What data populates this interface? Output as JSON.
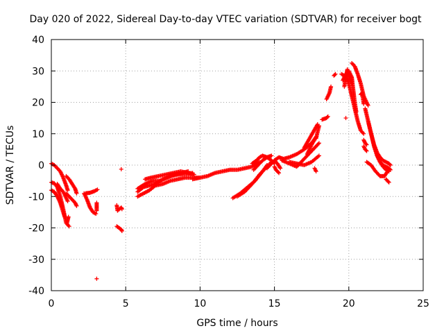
{
  "chart_data": {
    "type": "scatter",
    "title": "Day 020 of 2022, Sidereal Day-to-day VTEC variation (SDTVAR) for receiver bogt",
    "xlabel": "GPS time / hours",
    "ylabel": "SDTVAR / TECUs",
    "xlim": [
      0,
      25
    ],
    "ylim": [
      -40,
      40
    ],
    "xticks": [
      0,
      5,
      10,
      15,
      20,
      25
    ],
    "yticks": [
      -40,
      -30,
      -20,
      -10,
      0,
      10,
      20,
      30,
      40
    ],
    "grid": true,
    "marker": "+",
    "color": "#ff0000",
    "series": [
      {
        "name": "seg1",
        "x": [
          0.0,
          0.2,
          0.4,
          0.6,
          0.8,
          1.0,
          1.1
        ],
        "y": [
          0.5,
          0.0,
          -1.0,
          -2.0,
          -4.0,
          -6.5,
          -8.0
        ]
      },
      {
        "name": "seg2",
        "x": [
          0.0,
          0.2,
          0.4,
          0.6,
          0.8,
          1.0,
          1.2
        ],
        "y": [
          -5.5,
          -5.8,
          -7.0,
          -10.0,
          -14.0,
          -18.5,
          -19.5
        ]
      },
      {
        "name": "seg3",
        "x": [
          0.0,
          0.2,
          0.4,
          0.6,
          0.8,
          0.9
        ],
        "y": [
          -8.0,
          -8.5,
          -10.0,
          -12.0,
          -15.0,
          -16.5
        ]
      },
      {
        "name": "seg4",
        "x": [
          0.4,
          0.6,
          0.8,
          1.0,
          1.1
        ],
        "y": [
          -6.0,
          -7.5,
          -8.5,
          -10.5,
          -11.5
        ]
      },
      {
        "name": "seg5",
        "x": [
          1.0,
          1.2,
          1.4,
          1.6,
          1.7
        ],
        "y": [
          -3.5,
          -4.5,
          -6.0,
          -7.5,
          -9.0
        ]
      },
      {
        "name": "seg6",
        "x": [
          1.0,
          1.2,
          1.4,
          1.6,
          1.7
        ],
        "y": [
          -9.0,
          -10.0,
          -11.0,
          -12.0,
          -13.0
        ]
      },
      {
        "name": "seg7",
        "x": [
          1.05,
          1.1,
          1.15
        ],
        "y": [
          -18.5,
          -17.5,
          -16.5
        ]
      },
      {
        "name": "seg8",
        "x": [
          2.2,
          2.4,
          2.6,
          2.8,
          3.0
        ],
        "y": [
          -9.0,
          -11.0,
          -13.5,
          -15.0,
          -15.5
        ]
      },
      {
        "name": "seg9",
        "x": [
          2.3,
          2.6,
          2.9,
          3.1
        ],
        "y": [
          -9.0,
          -8.8,
          -8.3,
          -7.8
        ]
      },
      {
        "name": "seg10",
        "x": [
          3.05,
          3.05,
          3.05
        ],
        "y": [
          -12.0,
          -13.0,
          -14.5
        ]
      },
      {
        "name": "seg11",
        "x": [
          3.05
        ],
        "y": [
          -36.2
        ]
      },
      {
        "name": "seg12",
        "x": [
          4.4,
          4.45,
          4.7,
          4.75
        ],
        "y": [
          -12.8,
          -14.5,
          -13.5,
          -14.0
        ]
      },
      {
        "name": "seg13",
        "x": [
          4.4,
          4.7,
          4.75
        ],
        "y": [
          -19.5,
          -20.5,
          -21.0
        ]
      },
      {
        "name": "seg14",
        "x": [
          4.7
        ],
        "y": [
          -1.3
        ]
      },
      {
        "name": "seg15",
        "x": [
          5.8,
          6.2,
          6.6,
          7.0,
          7.5,
          8.0,
          8.5,
          9.0,
          9.5,
          10.0
        ],
        "y": [
          -10.0,
          -9.0,
          -8.0,
          -6.5,
          -6.0,
          -5.0,
          -4.5,
          -4.0,
          -4.0,
          -4.0
        ]
      },
      {
        "name": "seg16",
        "x": [
          5.8,
          6.3,
          6.8,
          7.3,
          7.8,
          8.3,
          8.8,
          9.2
        ],
        "y": [
          -7.5,
          -6.0,
          -5.0,
          -5.0,
          -4.0,
          -3.0,
          -2.5,
          -2.0
        ]
      },
      {
        "name": "seg17",
        "x": [
          5.8,
          6.2,
          6.6,
          7.0,
          7.5,
          8.0,
          8.5,
          9.0,
          9.5
        ],
        "y": [
          -8.5,
          -7.0,
          -6.5,
          -6.0,
          -4.5,
          -3.5,
          -3.0,
          -2.8,
          -2.5
        ]
      },
      {
        "name": "seg18",
        "x": [
          6.3,
          6.7,
          7.2,
          7.7,
          8.2,
          8.7,
          9.2,
          9.6
        ],
        "y": [
          -4.5,
          -4.0,
          -3.5,
          -3.0,
          -2.5,
          -2.0,
          -2.5,
          -3.0
        ]
      },
      {
        "name": "seg19",
        "x": [
          9.5,
          10.0,
          10.5,
          11.0,
          11.5,
          12.0,
          12.5,
          13.0,
          13.5,
          14.0
        ],
        "y": [
          -4.5,
          -4.0,
          -3.5,
          -2.5,
          -2.0,
          -1.5,
          -1.5,
          -1.0,
          -0.5,
          1.0
        ]
      },
      {
        "name": "seg20",
        "x": [
          12.2,
          12.7,
          13.2,
          13.7,
          14.2,
          14.5
        ],
        "y": [
          -10.5,
          -9.0,
          -7.0,
          -5.0,
          -2.0,
          0.0
        ]
      },
      {
        "name": "seg21",
        "x": [
          12.5,
          13.0,
          13.5,
          14.0,
          14.5,
          14.8
        ],
        "y": [
          -10.0,
          -8.5,
          -6.0,
          -3.0,
          -0.5,
          1.0
        ]
      },
      {
        "name": "seg22",
        "x": [
          13.5,
          13.8,
          14.0,
          14.2,
          14.5,
          14.8,
          15.0
        ],
        "y": [
          0.5,
          1.5,
          2.5,
          3.0,
          2.5,
          1.5,
          0.5
        ]
      },
      {
        "name": "seg23",
        "x": [
          13.6,
          13.9,
          14.2,
          14.5,
          14.8
        ],
        "y": [
          -1.5,
          0.0,
          1.5,
          2.5,
          3.0
        ]
      },
      {
        "name": "seg24",
        "x": [
          14.5,
          14.8,
          15.0,
          15.2,
          15.4
        ],
        "y": [
          -1.0,
          0.5,
          1.5,
          0.5,
          -1.0
        ]
      },
      {
        "name": "seg25",
        "x": [
          15.0,
          15.1,
          15.2,
          15.3
        ],
        "y": [
          -0.5,
          -1.5,
          -2.0,
          -2.5
        ]
      },
      {
        "name": "seg26",
        "x": [
          15.0,
          15.3,
          15.6,
          16.0,
          16.5,
          17.0,
          17.5,
          17.8
        ],
        "y": [
          1.5,
          2.5,
          2.0,
          2.5,
          3.5,
          5.0,
          7.0,
          9.0
        ]
      },
      {
        "name": "seg27",
        "x": [
          15.5,
          16.0,
          16.5,
          17.0,
          17.5,
          18.0
        ],
        "y": [
          1.5,
          0.5,
          -0.5,
          2.0,
          4.5,
          7.0
        ]
      },
      {
        "name": "seg28",
        "x": [
          16.0,
          16.5,
          17.0,
          17.5,
          18.0
        ],
        "y": [
          1.0,
          0.5,
          0.0,
          1.0,
          3.0
        ]
      },
      {
        "name": "seg29",
        "x": [
          17.0,
          17.3,
          17.6,
          17.9
        ],
        "y": [
          5.5,
          8.0,
          10.5,
          13.0
        ]
      },
      {
        "name": "seg30",
        "x": [
          17.2,
          17.5,
          17.8
        ],
        "y": [
          3.5,
          6.5,
          9.0
        ]
      },
      {
        "name": "seg31",
        "x": [
          17.8,
          17.9,
          18.0
        ],
        "y": [
          8.5,
          10.5,
          12.5
        ]
      },
      {
        "name": "seg32",
        "x": [
          17.7,
          17.8
        ],
        "y": [
          -1.0,
          -2.0
        ]
      },
      {
        "name": "seg33",
        "x": [
          18.2,
          18.5,
          18.6
        ],
        "y": [
          14.5,
          15.0,
          15.5
        ]
      },
      {
        "name": "seg34",
        "x": [
          18.5,
          18.7,
          18.8
        ],
        "y": [
          21.0,
          23.0,
          25.0
        ]
      },
      {
        "name": "seg35",
        "x": [
          19.0,
          19.1
        ],
        "y": [
          28.5,
          29.0
        ]
      },
      {
        "name": "seg36",
        "x": [
          19.8
        ],
        "y": [
          15.0
        ]
      },
      {
        "name": "seg37",
        "x": [
          19.5,
          19.7,
          19.9,
          20.0,
          20.2,
          20.4,
          20.6,
          20.8,
          21.0
        ],
        "y": [
          29.0,
          28.5,
          27.5,
          26.0,
          22.0,
          18.0,
          14.0,
          11.0,
          10.0
        ]
      },
      {
        "name": "seg38",
        "x": [
          19.6,
          19.8,
          20.0,
          20.2,
          20.3,
          20.4,
          20.5
        ],
        "y": [
          27.0,
          29.0,
          30.0,
          28.0,
          24.0,
          20.0,
          17.0
        ]
      },
      {
        "name": "seg39",
        "x": [
          19.7,
          19.8,
          19.9,
          20.0,
          20.1,
          20.2
        ],
        "y": [
          25.0,
          28.0,
          30.5,
          28.5,
          27.0,
          26.0
        ]
      },
      {
        "name": "seg40",
        "x": [
          20.2,
          20.4,
          20.6,
          20.8,
          21.0,
          21.3
        ],
        "y": [
          32.5,
          31.5,
          29.0,
          26.0,
          22.0,
          19.0
        ]
      },
      {
        "name": "seg41",
        "x": [
          20.8,
          20.9,
          21.0
        ],
        "y": [
          22.5,
          23.0,
          19.5
        ]
      },
      {
        "name": "seg42",
        "x": [
          21.0,
          21.1,
          21.2
        ],
        "y": [
          8.0,
          7.0,
          6.5
        ]
      },
      {
        "name": "seg43",
        "x": [
          21.1,
          21.3,
          21.5,
          21.7,
          21.9,
          22.1,
          22.3,
          22.5,
          22.7,
          22.8
        ],
        "y": [
          18.0,
          14.0,
          10.0,
          6.0,
          3.0,
          1.0,
          0.0,
          -0.5,
          -1.0,
          -1.5
        ]
      },
      {
        "name": "seg44",
        "x": [
          21.3,
          21.5,
          21.7,
          21.9,
          22.1,
          22.3,
          22.5,
          22.7
        ],
        "y": [
          14.0,
          10.0,
          6.0,
          3.0,
          1.0,
          -0.5,
          -1.5,
          -2.0
        ]
      },
      {
        "name": "seg45",
        "x": [
          21.5,
          21.7,
          21.9,
          22.1,
          22.3,
          22.5,
          22.7,
          22.8
        ],
        "y": [
          10.0,
          6.5,
          4.0,
          2.5,
          1.5,
          1.0,
          0.5,
          0.0
        ]
      },
      {
        "name": "seg46",
        "x": [
          21.2,
          21.5,
          21.8,
          22.1,
          22.4,
          22.6
        ],
        "y": [
          1.0,
          0.0,
          -2.0,
          -3.5,
          -3.5,
          -2.0
        ]
      },
      {
        "name": "seg47",
        "x": [
          22.5,
          22.6,
          22.7
        ],
        "y": [
          -4.5,
          -5.0,
          -5.5
        ]
      },
      {
        "name": "seg48",
        "x": [
          21.0,
          21.1,
          21.2
        ],
        "y": [
          6.0,
          5.0,
          4.5
        ]
      }
    ]
  }
}
